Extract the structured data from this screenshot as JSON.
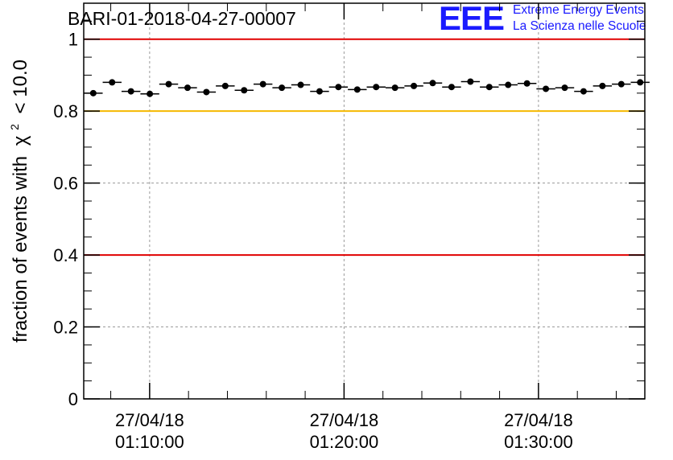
{
  "title": "BARI-01-2018-04-27-00007",
  "logo": {
    "letters": "EEE",
    "line1": "Extreme Energy Events",
    "line2": "La Scienza nelle Scuole",
    "color": "#1a1aff"
  },
  "chart_data": {
    "type": "scatter",
    "ylabel_main": "fraction of events with",
    "ylabel_symbol": "χ",
    "ylabel_sup": "2",
    "ylabel_tail": "< 10.0",
    "ylim": [
      0,
      1.1
    ],
    "y_ticks": [
      "0",
      "0.2",
      "0.4",
      "0.6",
      "0.8",
      "1"
    ],
    "y_tick_values": [
      0,
      0.2,
      0.4,
      0.6,
      0.8,
      1.0
    ],
    "x_tick_labels": [
      {
        "date": "27/04/18",
        "time": "01:10:00"
      },
      {
        "date": "27/04/18",
        "time": "01:20:00"
      },
      {
        "date": "27/04/18",
        "time": "01:30:00"
      }
    ],
    "x_tick_minutes": [
      10,
      20,
      30
    ],
    "xlim_minutes": [
      6.61,
      35.47
    ],
    "grid": true,
    "reference_lines": [
      {
        "y": 1.0,
        "color": "#e00000"
      },
      {
        "y": 0.8,
        "color": "#f5b800"
      },
      {
        "y": 0.4,
        "color": "#e00000"
      }
    ],
    "bin_width_minutes": 0.97,
    "x_minutes": [
      7.1,
      8.07,
      9.04,
      10.01,
      10.98,
      11.95,
      12.92,
      13.89,
      14.86,
      15.83,
      16.8,
      17.77,
      18.74,
      19.71,
      20.68,
      21.65,
      22.62,
      23.59,
      24.56,
      25.53,
      26.5,
      27.47,
      28.44,
      29.41,
      30.38,
      31.35,
      32.32,
      33.29,
      34.26,
      35.23
    ],
    "values": [
      0.85,
      0.88,
      0.855,
      0.848,
      0.875,
      0.865,
      0.853,
      0.87,
      0.858,
      0.875,
      0.865,
      0.873,
      0.855,
      0.867,
      0.86,
      0.867,
      0.865,
      0.87,
      0.878,
      0.867,
      0.882,
      0.867,
      0.873,
      0.877,
      0.862,
      0.865,
      0.855,
      0.87,
      0.875,
      0.88
    ]
  }
}
